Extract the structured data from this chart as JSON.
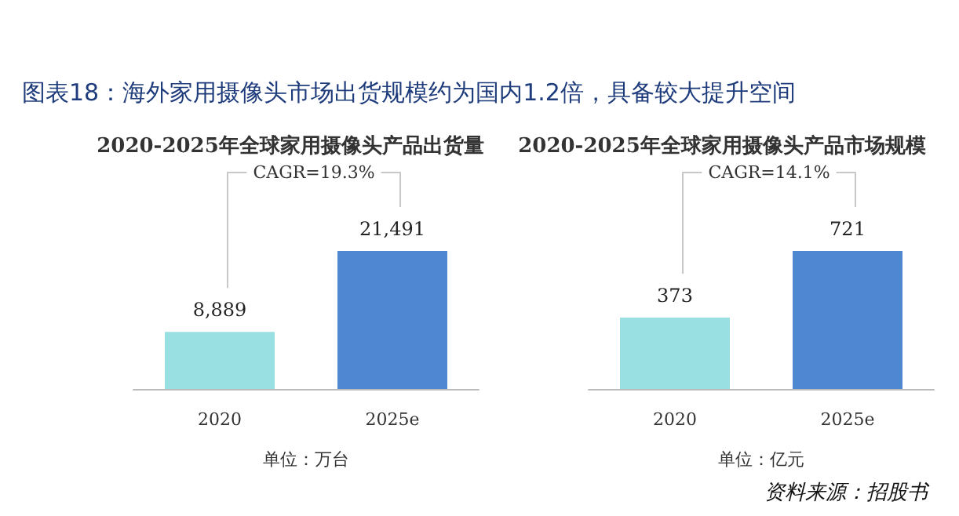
{
  "chart_data": [
    {
      "type": "bar",
      "title": "2020-2025年全球家用摄像头产品出货量",
      "categories": [
        "2020",
        "2025e"
      ],
      "values": [
        8889,
        21491
      ],
      "colors": [
        "#98e0e2",
        "#5087d3"
      ],
      "value_labels": [
        "8,889",
        "21,491"
      ],
      "annotations": [
        "CAGR=19.3%",
        "单位：万台",
        "图表18：海外家用摄像头市场出货规模约为国内1.2倍，具备较大提升空间",
        "资料来源：招股书"
      ]
    },
    {
      "type": "bar",
      "title": "2020-2025年全球家用摄像头产品市场规模",
      "categories": [
        "2020",
        "2025e"
      ],
      "values": [
        373,
        721
      ],
      "colors": [
        "#98e0e2",
        "#5087d3"
      ],
      "data_labels": true,
      "annotations": [
        "CAGR=14.1%",
        "单位：亿元"
      ]
    }
  ]
}
